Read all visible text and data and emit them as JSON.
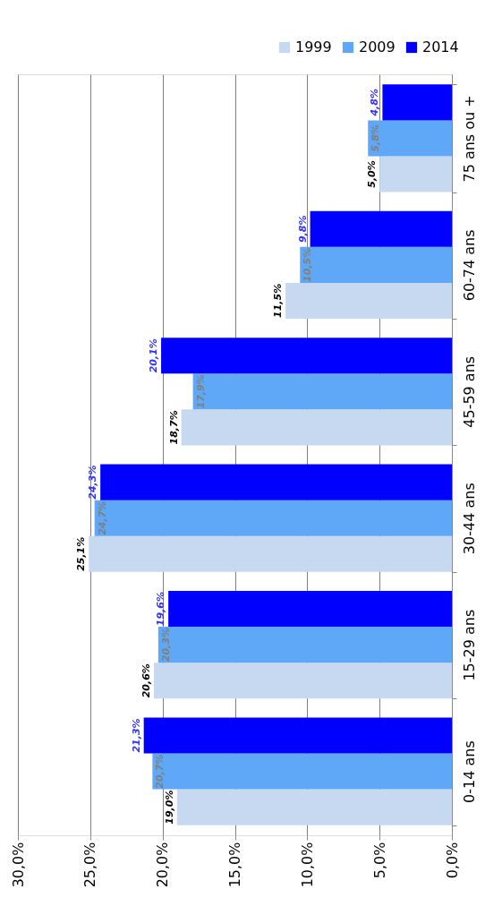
{
  "chart_data": {
    "type": "bar",
    "orientation": "horizontal",
    "categories": [
      "75 ans ou +",
      "60-74 ans",
      "45-59 ans",
      "30-44 ans",
      "15-29 ans",
      "0-14 ans"
    ],
    "series": [
      {
        "name": "1999",
        "color": "#c6d9f0",
        "values": [
          5.0,
          11.5,
          18.7,
          25.1,
          20.6,
          19.0
        ],
        "value_labels": [
          "5,0%",
          "11,5%",
          "18,7%",
          "25,1%",
          "20,6%",
          "19,0%"
        ]
      },
      {
        "name": "2009",
        "color": "#5fa8f8",
        "values": [
          5.8,
          10.5,
          17.9,
          24.7,
          20.3,
          20.7
        ],
        "value_labels": [
          "5,8%",
          "10,5%",
          "17,9%",
          "24,7%",
          "20,3%",
          "20,7%"
        ]
      },
      {
        "name": "2014",
        "color": "#0000ff",
        "values": [
          4.8,
          9.8,
          20.1,
          24.3,
          19.6,
          21.3
        ],
        "value_labels": [
          "4,8%",
          "9,8%",
          "20,1%",
          "24,3%",
          "19,6%",
          "21,3%"
        ]
      }
    ],
    "xlim": [
      30,
      0
    ],
    "xticks": [
      {
        "value": 30,
        "label": "30,0%"
      },
      {
        "value": 25,
        "label": "25,0%"
      },
      {
        "value": 20,
        "label": "20,0%"
      },
      {
        "value": 15,
        "label": "15,0%"
      },
      {
        "value": 10,
        "label": "10,0%"
      },
      {
        "value": 5,
        "label": "5,0%"
      },
      {
        "value": 0,
        "label": "0,0%"
      }
    ],
    "grid": "x",
    "legend": "top right"
  }
}
